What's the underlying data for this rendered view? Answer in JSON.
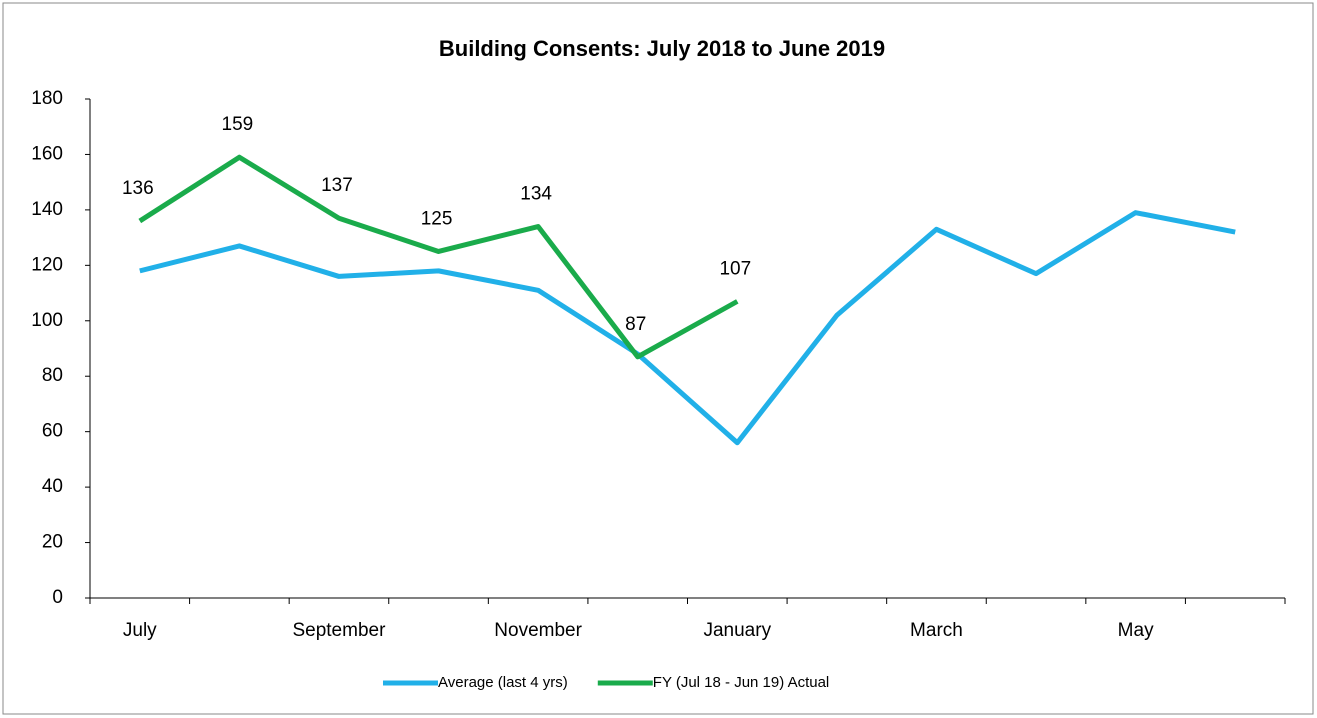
{
  "chart_data": {
    "type": "line",
    "title": "Building Consents: July 2018 to June 2019",
    "categories": [
      "July",
      null,
      "September",
      null,
      "November",
      null,
      "January",
      null,
      "March",
      null,
      "May",
      null
    ],
    "series": [
      {
        "name": "Average (last 4 yrs)",
        "color": "#21b0e8",
        "values": [
          118,
          127,
          116,
          118,
          111,
          88,
          56,
          102,
          133,
          117,
          139,
          132
        ]
      },
      {
        "name": "FY (Jul 18 - Jun 19) Actual",
        "color": "#1aab4b",
        "values": [
          136,
          159,
          137,
          125,
          134,
          87,
          107,
          null,
          null,
          null,
          null,
          null
        ],
        "data_labels": true
      }
    ],
    "ylim": [
      0,
      180
    ],
    "yticks": [
      0,
      20,
      40,
      60,
      80,
      100,
      120,
      140,
      160,
      180
    ],
    "grid": false,
    "legend": "bottom"
  }
}
